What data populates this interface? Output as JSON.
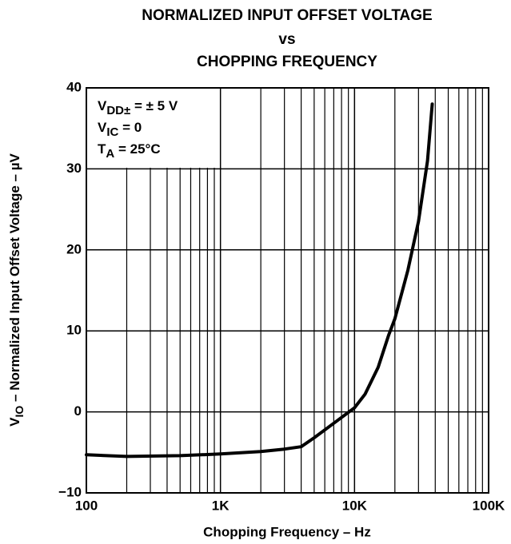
{
  "chart_data": {
    "type": "line",
    "title": [
      "NORMALIZED INPUT OFFSET VOLTAGE",
      "vs",
      "CHOPPING FREQUENCY"
    ],
    "xlabel": "Chopping Frequency – Hz",
    "ylabel": {
      "main": "V",
      "sub": "IO",
      "rest": " – Normalized Input Offset Voltage – µV"
    },
    "annotations": [
      {
        "main": "V",
        "sub": "DD±",
        "rest": " = ± 5 V"
      },
      {
        "main": "V",
        "sub": "IC",
        "rest": " = 0"
      },
      {
        "main": "T",
        "sub": "A",
        "rest": " = 25°C"
      }
    ],
    "xscale": "log",
    "xlim": [
      100,
      100000
    ],
    "xticks": [
      100,
      {
        "value": 1000,
        "label": "1K"
      },
      {
        "value": 10000,
        "label": "10K"
      },
      {
        "value": 100000,
        "label": "100K"
      }
    ],
    "xminor": [
      200,
      300,
      400,
      500,
      600,
      700,
      800,
      900,
      2000,
      3000,
      4000,
      5000,
      6000,
      7000,
      8000,
      9000,
      20000,
      30000,
      40000,
      50000,
      60000,
      70000,
      80000,
      90000
    ],
    "ylim": [
      -10,
      40
    ],
    "yticks": [
      {
        "value": -10,
        "label": "−10"
      },
      0,
      10,
      20,
      30,
      40
    ],
    "grid": true,
    "series": [
      {
        "color": "#000000",
        "x": [
          100,
          200,
          500,
          1000,
          2000,
          3000,
          4000,
          5000,
          7000,
          10000,
          12000,
          15000,
          18000,
          20000,
          25000,
          30000,
          35000,
          38000
        ],
        "values": [
          -5.3,
          -5.5,
          -5.4,
          -5.2,
          -4.9,
          -4.6,
          -4.3,
          -3.2,
          -1.4,
          0.5,
          2.2,
          5.5,
          9.5,
          11.5,
          17.5,
          23.5,
          31,
          38
        ]
      }
    ]
  }
}
